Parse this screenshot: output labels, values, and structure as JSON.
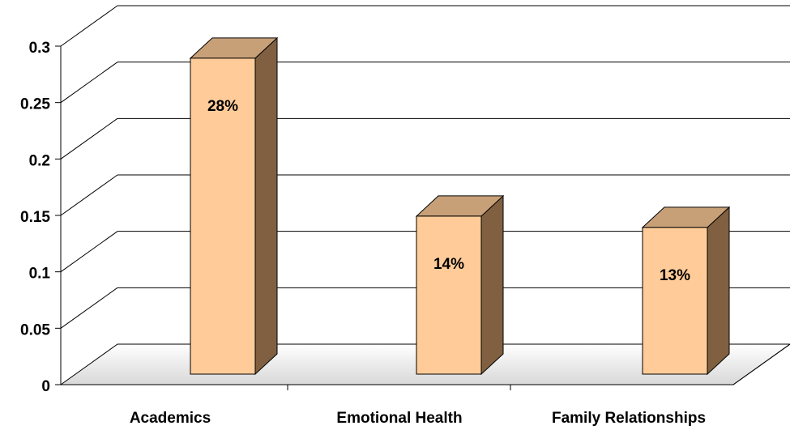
{
  "chart_data": {
    "type": "bar3d",
    "categories": [
      "Academics",
      "Emotional Health",
      "Family Relationships"
    ],
    "values": [
      0.28,
      0.14,
      0.13
    ],
    "value_labels": [
      "28%",
      "14%",
      "13%"
    ],
    "color": "#ffcc99",
    "ylim": [
      0,
      0.3
    ],
    "yticks": [
      0,
      0.05,
      0.1,
      0.15,
      0.2,
      0.25,
      0.3
    ],
    "grid": true
  }
}
